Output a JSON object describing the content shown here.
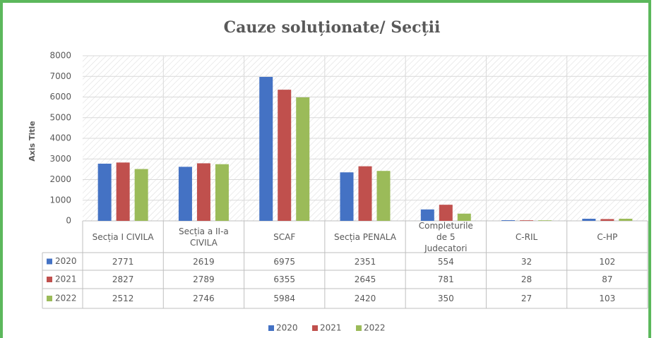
{
  "chart_data": {
    "type": "bar",
    "title": "Cauze soluționate/ Secții",
    "y_axis_label": "Axis Title",
    "categories": [
      "Secția I CIVILA",
      "Secția a II-a CIVILA",
      "SCAF",
      "Secția PENALA",
      "Completurile de 5 Judecatori",
      "C-RIL",
      "C-HP"
    ],
    "series": [
      {
        "name": "2020",
        "color": "#4472c4",
        "values": [
          2771,
          2619,
          6975,
          2351,
          554,
          32,
          102
        ]
      },
      {
        "name": "2021",
        "color": "#c0504d",
        "values": [
          2827,
          2789,
          6355,
          2645,
          781,
          28,
          87
        ]
      },
      {
        "name": "2022",
        "color": "#9bbb59",
        "values": [
          2512,
          2746,
          5984,
          2420,
          350,
          27,
          103
        ]
      }
    ],
    "ylim": [
      0,
      8000
    ],
    "yticks": [
      0,
      1000,
      2000,
      3000,
      4000,
      5000,
      6000,
      7000,
      8000
    ],
    "grid": true,
    "legend": "bottom"
  }
}
